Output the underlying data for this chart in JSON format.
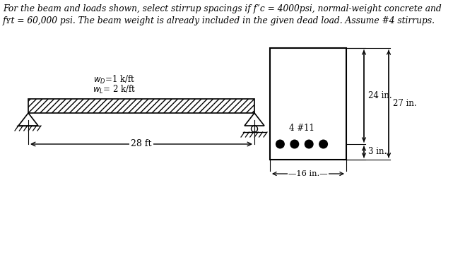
{
  "title_line1": "For the beam and loads shown, select stirrup spacings if f’c = 4000psi, normal-weight concrete and",
  "title_line2": "fʏt = 60,000 psi. The beam weight is already included in the given dead load. Assume #4 stirrups.",
  "wD_label": "w_D =1 k/ft",
  "wL_label": "w_L = 2 k/ft",
  "span_label": "28 ft",
  "width_label": "16 in.",
  "depth_label": "24 in.",
  "total_depth_label": "27 in.",
  "cover_label": "3 in.",
  "rebar_label": "4 #11",
  "bg_color": "#ffffff",
  "beam_color": "#000000",
  "text_color": "#000000",
  "fig_w": 6.58,
  "fig_h": 3.78
}
